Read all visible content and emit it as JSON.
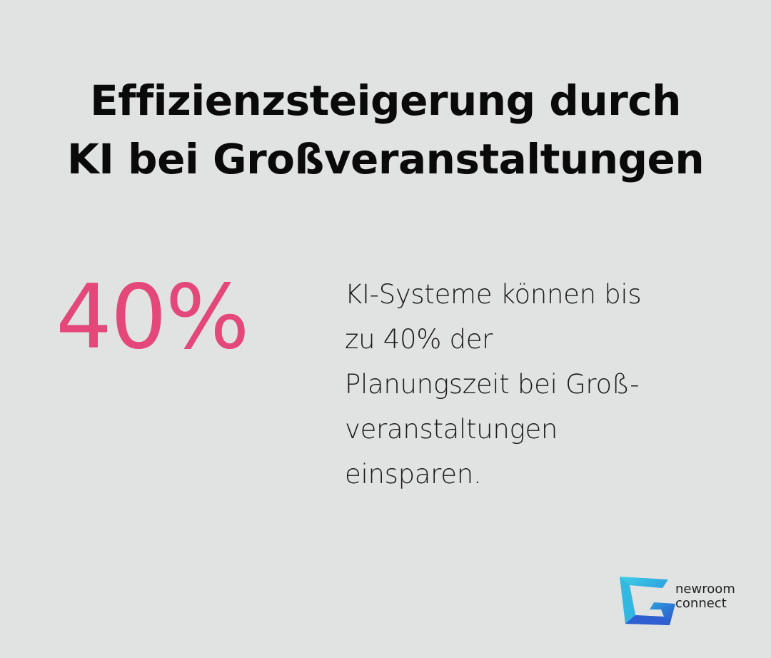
{
  "heading": {
    "line1": "Effizienzsteigerung durch",
    "line2": "KI bei Großveranstaltungen"
  },
  "stat": {
    "value": "40%"
  },
  "description": {
    "lines": [
      "KI-Systeme können bis",
      "zu 40% der",
      "Planungszeit bei Groß-",
      "veranstaltungen",
      "einsparen."
    ]
  },
  "logo": {
    "line1": "newroom",
    "line2": "connect"
  },
  "colors": {
    "background": "#e1e3e2",
    "accent": "#e4477a",
    "text": "#0a0a0a",
    "logo_cyan": "#39c5e8",
    "logo_blue": "#2f5fd0"
  }
}
